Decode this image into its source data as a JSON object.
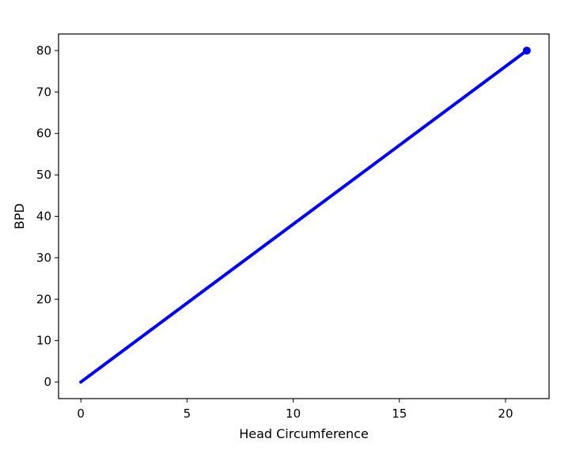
{
  "chart_data": {
    "type": "line",
    "title": "",
    "xlabel": "Head Circumference",
    "ylabel": "BPD",
    "xlim": [
      -1.05,
      22.05
    ],
    "ylim": [
      -4,
      84
    ],
    "xticks": [
      0,
      5,
      10,
      15,
      20
    ],
    "yticks": [
      0,
      10,
      20,
      30,
      40,
      50,
      60,
      70,
      80
    ],
    "grid": false,
    "series": [
      {
        "x": [
          0,
          21
        ],
        "y": [
          0,
          80
        ],
        "color": "#0000ff",
        "marker": "end-point"
      }
    ]
  }
}
